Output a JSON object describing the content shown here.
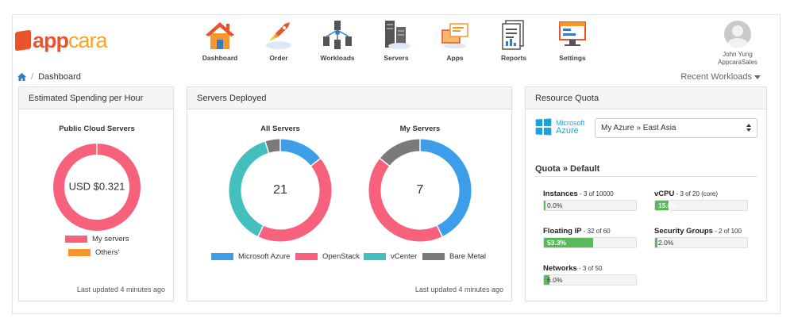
{
  "brand": {
    "name_a": "app",
    "name_b": "cara",
    "color_a": "#e8542c",
    "color_b": "#f5a623"
  },
  "nav": [
    {
      "label": "Dashboard",
      "icon": "house-icon"
    },
    {
      "label": "Order",
      "icon": "rocket-icon"
    },
    {
      "label": "Workloads",
      "icon": "workloads-icon"
    },
    {
      "label": "Servers",
      "icon": "servers-icon"
    },
    {
      "label": "Apps",
      "icon": "apps-icon"
    },
    {
      "label": "Reports",
      "icon": "reports-icon"
    },
    {
      "label": "Settings",
      "icon": "settings-icon"
    }
  ],
  "user": {
    "name": "John Yung",
    "org": "AppcaraSales"
  },
  "breadcrumb": {
    "current": "Dashboard"
  },
  "recent_workloads": "Recent Workloads",
  "spending": {
    "header": "Estimated Spending per Hour",
    "chart_title": "Public Cloud Servers",
    "center_text": "USD $0.321",
    "legend": [
      {
        "label": "My servers",
        "color": "#f7617c"
      },
      {
        "label": "Others'",
        "color": "#f7962c"
      }
    ],
    "footer": "Last updated 4 minutes ago"
  },
  "servers": {
    "header": "Servers Deployed",
    "all_title": "All Servers",
    "all_total": "21",
    "my_title": "My Servers",
    "my_total": "7",
    "legend": [
      {
        "label": "Microsoft Azure",
        "color": "#3c9ee8"
      },
      {
        "label": "OpenStack",
        "color": "#f7617c"
      },
      {
        "label": "vCenter",
        "color": "#43bfbf"
      },
      {
        "label": "Bare Metal",
        "color": "#7a7a7a"
      }
    ],
    "footer": "Last updated 4 minutes ago"
  },
  "chart_data": [
    {
      "type": "pie",
      "title": "Public Cloud Servers",
      "labels": [
        "My servers",
        "Others'"
      ],
      "values": [
        100,
        0
      ]
    },
    {
      "type": "pie",
      "title": "All Servers",
      "labels": [
        "Microsoft Azure",
        "OpenStack",
        "vCenter",
        "Bare Metal"
      ],
      "values": [
        3,
        9,
        8,
        1
      ]
    },
    {
      "type": "pie",
      "title": "My Servers",
      "labels": [
        "Microsoft Azure",
        "OpenStack",
        "vCenter",
        "Bare Metal"
      ],
      "values": [
        3,
        3,
        0,
        1
      ]
    }
  ],
  "quota": {
    "header": "Resource Quota",
    "provider": {
      "line1": "Microsoft",
      "line2": "Azure"
    },
    "selected_region": "My Azure » East Asia",
    "section_title": "Quota » Default",
    "items": [
      {
        "name": "Instances",
        "detail": " - 3 of 10000",
        "percent": 0.0,
        "text": "0.0%"
      },
      {
        "name": "vCPU",
        "detail": " - 3 of 20 (core)",
        "percent": 15.0,
        "text": "15.0%"
      },
      {
        "name": "Floating IP",
        "detail": " - 32 of 60",
        "percent": 53.3,
        "text": "53.3%"
      },
      {
        "name": "Security Groups",
        "detail": " - 2 of 100",
        "percent": 2.0,
        "text": "2.0%"
      },
      {
        "name": "Networks",
        "detail": " - 3 of 50",
        "percent": 6.0,
        "text": "6.0%"
      }
    ]
  }
}
